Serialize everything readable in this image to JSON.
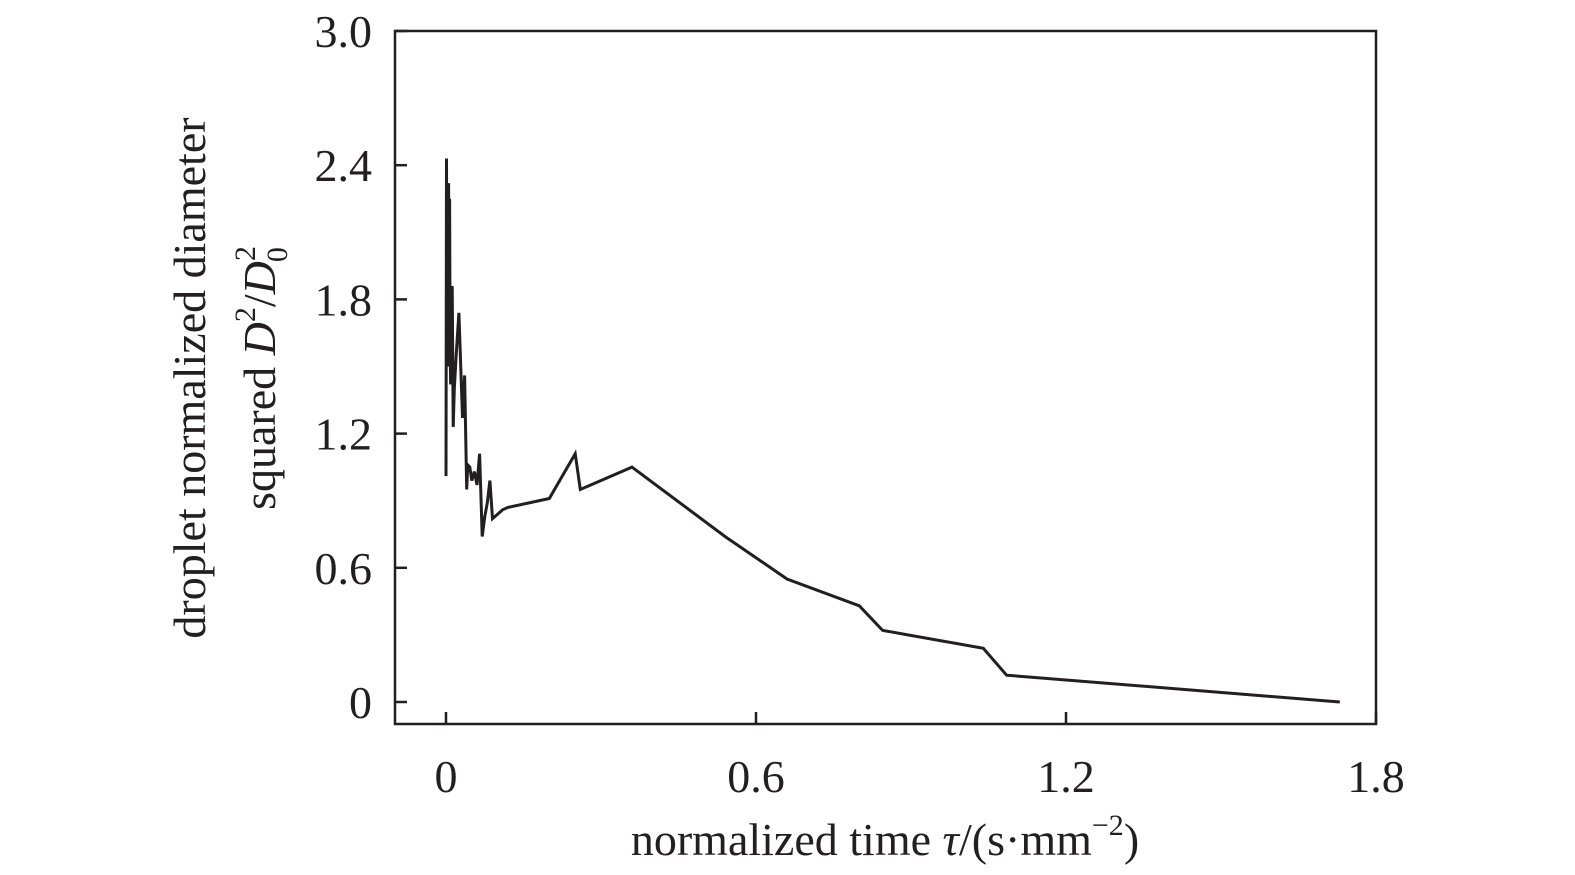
{
  "chart_data": {
    "type": "line",
    "xlabel": {
      "text": "normalized time ",
      "symbol": "τ",
      "unit": "/(s·mm",
      "unit_exp": "−2",
      "unit_close": ")"
    },
    "ylabel": {
      "line1": "droplet normalized diameter",
      "line2_text": "squared ",
      "line2_sym1": "D",
      "line2_sup1": "2",
      "line2_slash": "/",
      "line2_sym2": "D",
      "line2_sup2": "2",
      "line2_sub2": "0"
    },
    "xlim": [
      -0.1,
      1.8
    ],
    "ylim": [
      -0.1,
      3.0
    ],
    "x_ticks": [
      0,
      0.6,
      1.2,
      1.8
    ],
    "x_tick_labels": [
      "0",
      "0.6",
      "1.2",
      "1.8"
    ],
    "y_ticks": [
      0,
      0.6,
      1.2,
      1.8,
      2.4,
      3.0
    ],
    "y_tick_labels": [
      "0",
      "0.6",
      "1.2",
      "1.8",
      "2.4",
      "3.0"
    ],
    "grid": false,
    "legend": "none",
    "series": [
      {
        "color": "#231f20",
        "x": [
          0.0,
          0.001,
          0.002,
          0.003,
          0.004,
          0.005,
          0.006,
          0.007,
          0.008,
          0.009,
          0.01,
          0.012,
          0.014,
          0.016,
          0.02,
          0.025,
          0.032,
          0.036,
          0.04,
          0.042,
          0.046,
          0.05,
          0.055,
          0.06,
          0.065,
          0.07,
          0.075,
          0.08,
          0.085,
          0.09,
          0.1,
          0.11,
          0.12,
          0.2,
          0.25,
          0.26,
          0.36,
          0.54,
          0.66,
          0.8,
          0.845,
          1.04,
          1.085,
          1.73
        ],
        "y": [
          1.01,
          2.43,
          1.55,
          2.05,
          1.55,
          2.32,
          1.5,
          2.25,
          1.62,
          1.42,
          1.52,
          1.86,
          1.23,
          1.4,
          1.56,
          1.74,
          1.27,
          1.46,
          0.95,
          1.06,
          1.05,
          0.99,
          1.03,
          0.97,
          1.11,
          0.74,
          0.83,
          0.89,
          0.99,
          0.82,
          0.84,
          0.86,
          0.87,
          0.91,
          1.11,
          0.95,
          1.05,
          0.74,
          0.55,
          0.43,
          0.32,
          0.24,
          0.12,
          0.0
        ]
      }
    ]
  }
}
